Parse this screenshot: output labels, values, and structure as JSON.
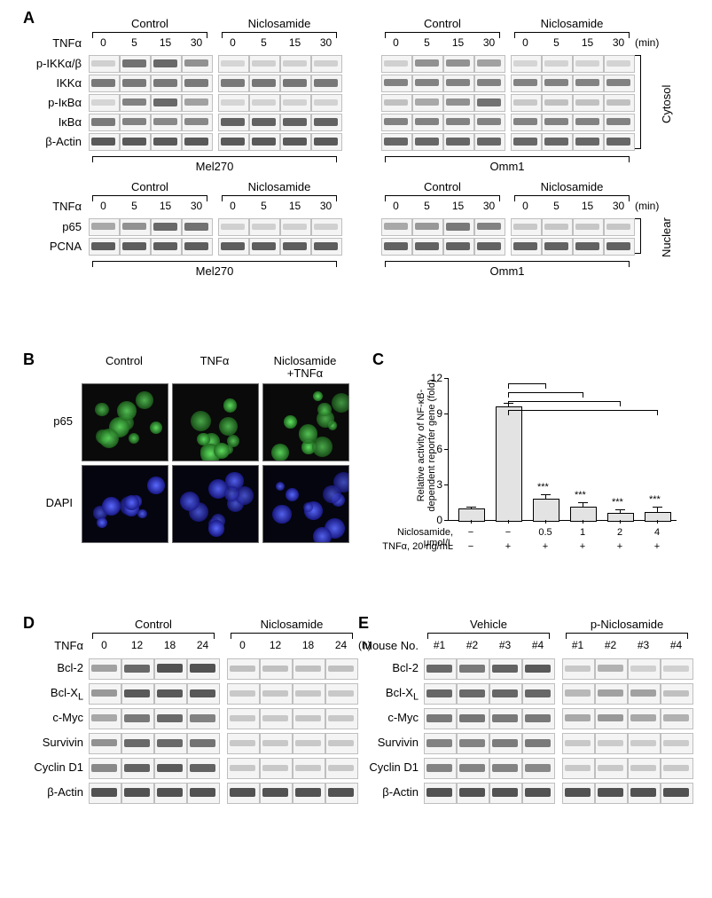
{
  "panel_labels": {
    "A": "A",
    "B": "B",
    "C": "C",
    "D": "D",
    "E": "E"
  },
  "A": {
    "top": {
      "treatments": [
        "Control",
        "Niclosamide",
        "Control",
        "Niclosamide"
      ],
      "row_left": "TNFα",
      "timepoints": [
        "0",
        "5",
        "15",
        "30",
        "0",
        "5",
        "15",
        "30"
      ],
      "unit": "(min)",
      "proteins": [
        "p-IKKα/β",
        "IKKα",
        "p-IκBα",
        "IκBα",
        "β-Actin"
      ],
      "bracket_label": "Cytosol",
      "cells": [
        "Mel270",
        "Omm1"
      ],
      "band_intensity": {
        "Mel270": {
          "p-IKKα/β": {
            "Control": [
              0.05,
              0.65,
              0.7,
              0.45
            ],
            "Niclosamide": [
              0.02,
              0.05,
              0.05,
              0.05
            ]
          },
          "IKKα": {
            "Control": [
              0.6,
              0.6,
              0.6,
              0.6
            ],
            "Niclosamide": [
              0.6,
              0.62,
              0.62,
              0.6
            ]
          },
          "p-IκBα": {
            "Control": [
              0.02,
              0.55,
              0.7,
              0.35
            ],
            "Niclosamide": [
              0.02,
              0.04,
              0.04,
              0.04
            ]
          },
          "IκBα": {
            "Control": [
              0.6,
              0.55,
              0.5,
              0.5
            ],
            "Niclosamide": [
              0.75,
              0.75,
              0.75,
              0.75
            ]
          },
          "β-Actin": {
            "Control": [
              0.8,
              0.8,
              0.8,
              0.8
            ],
            "Niclosamide": [
              0.8,
              0.8,
              0.8,
              0.8
            ]
          }
        },
        "Omm1": {
          "p-IKKα/β": {
            "Control": [
              0.05,
              0.45,
              0.45,
              0.35
            ],
            "Niclosamide": [
              0.02,
              0.03,
              0.03,
              0.03
            ]
          },
          "IKKα": {
            "Control": [
              0.55,
              0.55,
              0.55,
              0.55
            ],
            "Niclosamide": [
              0.55,
              0.55,
              0.55,
              0.55
            ]
          },
          "p-IκBα": {
            "Control": [
              0.15,
              0.3,
              0.45,
              0.65
            ],
            "Niclosamide": [
              0.1,
              0.15,
              0.15,
              0.15
            ]
          },
          "IκBα": {
            "Control": [
              0.55,
              0.55,
              0.55,
              0.55
            ],
            "Niclosamide": [
              0.55,
              0.55,
              0.55,
              0.55
            ]
          },
          "β-Actin": {
            "Control": [
              0.72,
              0.72,
              0.72,
              0.72
            ],
            "Niclosamide": [
              0.72,
              0.72,
              0.72,
              0.72
            ]
          }
        }
      }
    },
    "bottom": {
      "treatments": [
        "Control",
        "Niclosamide",
        "Control",
        "Niclosamide"
      ],
      "row_left": "TNFα",
      "timepoints": [
        "0",
        "5",
        "15",
        "30",
        "0",
        "5",
        "15",
        "30"
      ],
      "unit": "(min)",
      "proteins": [
        "p65",
        "PCNA"
      ],
      "bracket_label": "Nuclear",
      "cells": [
        "Mel270",
        "Omm1"
      ],
      "band_intensity": {
        "Mel270": {
          "p65": {
            "Control": [
              0.3,
              0.45,
              0.7,
              0.65
            ],
            "Niclosamide": [
              0.05,
              0.05,
              0.05,
              0.05
            ]
          },
          "PCNA": {
            "Control": [
              0.78,
              0.78,
              0.78,
              0.78
            ],
            "Niclosamide": [
              0.78,
              0.78,
              0.78,
              0.78
            ]
          }
        },
        "Omm1": {
          "p65": {
            "Control": [
              0.3,
              0.4,
              0.6,
              0.55
            ],
            "Niclosamide": [
              0.1,
              0.12,
              0.12,
              0.12
            ]
          },
          "PCNA": {
            "Control": [
              0.75,
              0.75,
              0.75,
              0.75
            ],
            "Niclosamide": [
              0.75,
              0.75,
              0.75,
              0.75
            ]
          }
        }
      }
    }
  },
  "B": {
    "cols": [
      "Control",
      "TNFα",
      "Niclosamide\n+TNFα"
    ],
    "rows": [
      "p65",
      "DAPI"
    ]
  },
  "C": {
    "ylabel": "Relative activity of NF-κB-\ndependent reporter gene (fold)",
    "ylim": [
      0,
      12
    ],
    "yticks": [
      0,
      3,
      6,
      9,
      12
    ],
    "values": [
      1.0,
      9.6,
      1.8,
      1.1,
      0.6,
      0.7
    ],
    "errors": [
      0.1,
      0.3,
      0.4,
      0.4,
      0.3,
      0.4
    ],
    "stars": [
      "",
      "",
      "***",
      "***",
      "***",
      "***"
    ],
    "sig_source_index": 1,
    "x_row1_label": "Niclosamide, μmol/L",
    "x_row2_label": "TNFα, 20 ng/mL",
    "x_row1": [
      "−",
      "−",
      "0.5",
      "1",
      "2",
      "4"
    ],
    "x_row2": [
      "−",
      "+",
      "+",
      "+",
      "+",
      "+"
    ],
    "bar_color": "#e3e3e3",
    "axis_color": "#000000",
    "background_color": "#ffffff"
  },
  "D": {
    "treatments": [
      "Control",
      "Niclosamide"
    ],
    "row_left": "TNFα",
    "timepoints": [
      "0",
      "12",
      "18",
      "24",
      "0",
      "12",
      "18",
      "24"
    ],
    "unit": "(h)",
    "proteins": [
      "Bcl-2",
      "Bcl-X",
      "c-Myc",
      "Survivin",
      "Cyclin D1",
      "β-Actin"
    ],
    "bclx_subscript": "L",
    "band_intensity": {
      "Bcl-2": {
        "Control": [
          0.35,
          0.7,
          0.85,
          0.85
        ],
        "Niclosamide": [
          0.15,
          0.15,
          0.15,
          0.15
        ]
      },
      "Bcl-X": {
        "Control": [
          0.4,
          0.8,
          0.8,
          0.8
        ],
        "Niclosamide": [
          0.1,
          0.12,
          0.12,
          0.1
        ]
      },
      "c-Myc": {
        "Control": [
          0.3,
          0.6,
          0.7,
          0.55
        ],
        "Niclosamide": [
          0.1,
          0.1,
          0.12,
          0.1
        ]
      },
      "Survivin": {
        "Control": [
          0.45,
          0.7,
          0.7,
          0.65
        ],
        "Niclosamide": [
          0.1,
          0.1,
          0.1,
          0.1
        ]
      },
      "Cyclin D1": {
        "Control": [
          0.5,
          0.75,
          0.8,
          0.75
        ],
        "Niclosamide": [
          0.1,
          0.1,
          0.1,
          0.1
        ]
      },
      "β-Actin": {
        "Control": [
          0.85,
          0.85,
          0.85,
          0.85
        ],
        "Niclosamide": [
          0.85,
          0.85,
          0.85,
          0.85
        ]
      }
    }
  },
  "E": {
    "treatments": [
      "Vehicle",
      "p-Niclosamide"
    ],
    "row_left": "Mouse No.",
    "mice": [
      "#1",
      "#2",
      "#3",
      "#4",
      "#1",
      "#2",
      "#3",
      "#4"
    ],
    "proteins": [
      "Bcl-2",
      "Bcl-X",
      "c-Myc",
      "Survivin",
      "Cyclin D1",
      "β-Actin"
    ],
    "bclx_subscript": "L",
    "band_intensity": {
      "Bcl-2": {
        "Vehicle": [
          0.7,
          0.6,
          0.75,
          0.8
        ],
        "p-Niclosamide": [
          0.1,
          0.25,
          0.05,
          0.05
        ]
      },
      "Bcl-X": {
        "Vehicle": [
          0.72,
          0.7,
          0.72,
          0.72
        ],
        "p-Niclosamide": [
          0.2,
          0.35,
          0.35,
          0.15
        ]
      },
      "c-Myc": {
        "Vehicle": [
          0.6,
          0.62,
          0.6,
          0.6
        ],
        "p-Niclosamide": [
          0.3,
          0.4,
          0.3,
          0.25
        ]
      },
      "Survivin": {
        "Vehicle": [
          0.55,
          0.55,
          0.58,
          0.6
        ],
        "p-Niclosamide": [
          0.1,
          0.08,
          0.08,
          0.08
        ]
      },
      "Cyclin D1": {
        "Vehicle": [
          0.55,
          0.55,
          0.55,
          0.5
        ],
        "p-Niclosamide": [
          0.1,
          0.1,
          0.1,
          0.1
        ]
      },
      "β-Actin": {
        "Vehicle": [
          0.85,
          0.85,
          0.85,
          0.85
        ],
        "p-Niclosamide": [
          0.85,
          0.85,
          0.85,
          0.85
        ]
      }
    }
  },
  "colors": {
    "background": "#ffffff",
    "text": "#000000",
    "lane_bg": "#f4f4f4",
    "lane_border": "#bfbfbf",
    "band": "#3a3a3a"
  }
}
